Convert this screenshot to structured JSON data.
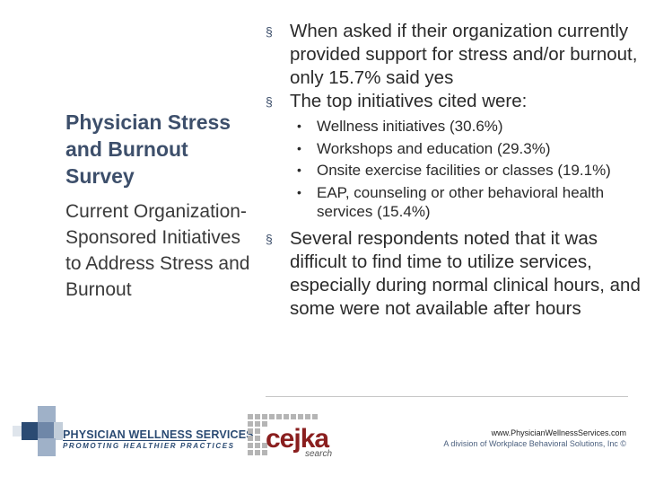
{
  "left": {
    "title": "Physician Stress and Burnout Survey",
    "subtitle": "Current Organization-Sponsored Initiatives to Address Stress and Burnout"
  },
  "bullets": [
    {
      "text": "When asked if their organization currently provided support for stress and/or burnout, only 15.7% said yes",
      "subs": []
    },
    {
      "text": "The top initiatives cited were:",
      "subs": [
        "Wellness initiatives (30.6%)",
        "Workshops and education (29.3%)",
        "Onsite exercise facilities or classes (19.1%)",
        "EAP, counseling or other behavioral health services (15.4%)"
      ]
    },
    {
      "text": "Several respondents noted that it was difficult to find time to utilize services, especially during normal clinical hours, and some were not available after hours",
      "subs": []
    }
  ],
  "footer": {
    "logo_name": "PHYSICIAN WELLNESS SERVICES",
    "logo_tagline": "PROMOTING HEALTHIER PRACTICES",
    "partner_logo_word": "cejka",
    "partner_logo_sub": "search",
    "url": "www.PhysicianWellnessServices.com",
    "division": "A division of Workplace Behavioral Solutions, Inc ©"
  },
  "colors": {
    "title": "#3d4f6b",
    "brand_blue": "#2b4b73",
    "cejka_red": "#8a1f1f"
  }
}
